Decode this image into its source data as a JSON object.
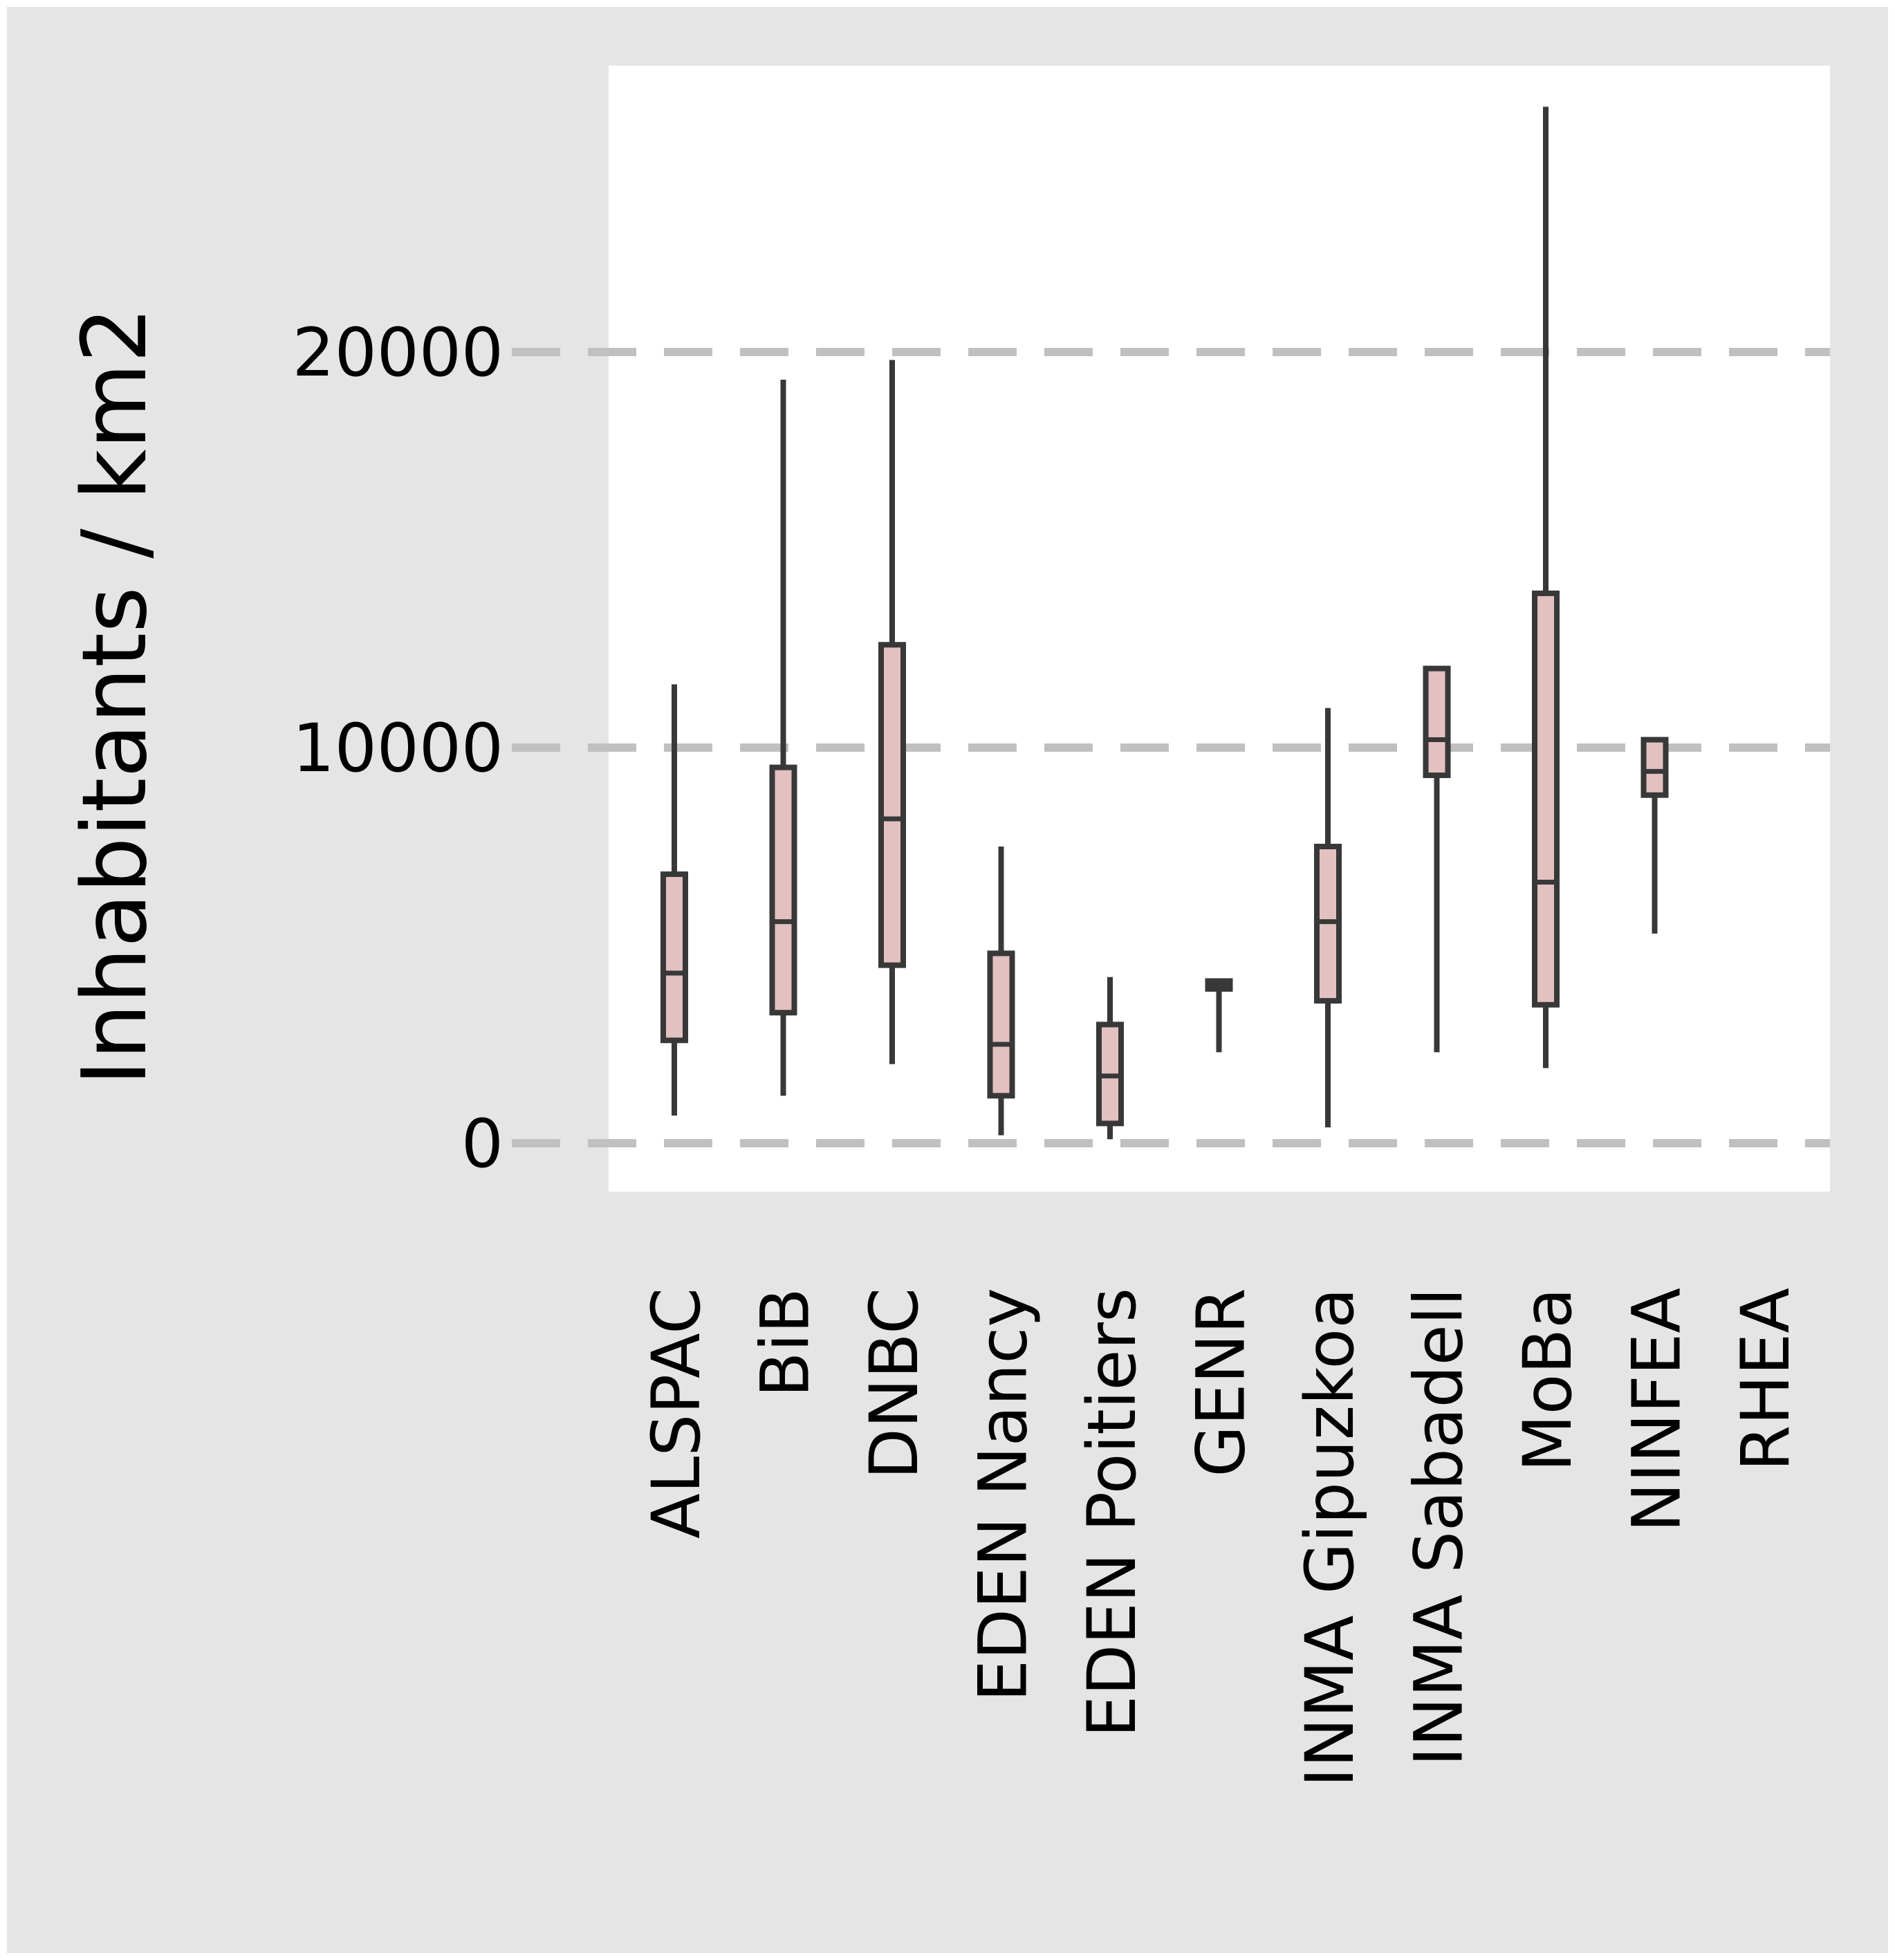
{
  "chart_data": {
    "type": "box",
    "title": "",
    "xlabel": "",
    "ylabel": "Inhabitants / km2",
    "ylim": [
      -1200,
      27500
    ],
    "yticks": [
      0,
      10000,
      20000
    ],
    "grid": "horizontal dashed",
    "categories": [
      "ALSPAC",
      "BiB",
      "DNBC",
      "EDEN Nancy",
      "EDEN Poitiers",
      "GENR",
      "INMA Gipuzkoa",
      "INMA Sabadell",
      "MoBa",
      "NINFEA",
      "RHEA"
    ],
    "boxes": [
      {
        "category": "ALSPAC",
        "whisker_low": 700,
        "q1": 2600,
        "median": 4300,
        "q3": 6800,
        "whisker_high": 11600
      },
      {
        "category": "BiB",
        "whisker_low": 1200,
        "q1": 3300,
        "median": 5600,
        "q3": 9500,
        "whisker_high": 19300
      },
      {
        "category": "DNBC",
        "whisker_low": 2000,
        "q1": 4500,
        "median": 8200,
        "q3": 12600,
        "whisker_high": 19800
      },
      {
        "category": "EDEN Nancy",
        "whisker_low": 200,
        "q1": 1200,
        "median": 2500,
        "q3": 4800,
        "whisker_high": 7500
      },
      {
        "category": "EDEN Poitiers",
        "whisker_low": 100,
        "q1": 500,
        "median": 1700,
        "q3": 3000,
        "whisker_high": 4200
      },
      {
        "category": "GENR",
        "whisker_low": 2300,
        "q1": 3900,
        "median": 4000,
        "q3": 4100,
        "whisker_high": 4100
      },
      {
        "category": "INMA Gipuzkoa",
        "whisker_low": 400,
        "q1": 3600,
        "median": 5600,
        "q3": 7500,
        "whisker_high": 11000
      },
      {
        "category": "INMA Sabadell",
        "whisker_low": 2300,
        "q1": 9300,
        "median": 10200,
        "q3": 12000,
        "whisker_high": 12000
      },
      {
        "category": "MoBa",
        "whisker_low": 1900,
        "q1": 3500,
        "median": 6600,
        "q3": 13900,
        "whisker_high": 26200
      },
      {
        "category": "NINFEA",
        "whisker_low": 5300,
        "q1": 8800,
        "median": 9400,
        "q3": 10200,
        "whisker_high": 10200
      },
      {
        "category": "RHEA"
      }
    ],
    "colors": {
      "box_fill": "#e3c1c1",
      "box_stroke": "#383838",
      "panel": "#ffffff",
      "background": "#e5e5e5",
      "grid": "#c0c0c0"
    }
  }
}
